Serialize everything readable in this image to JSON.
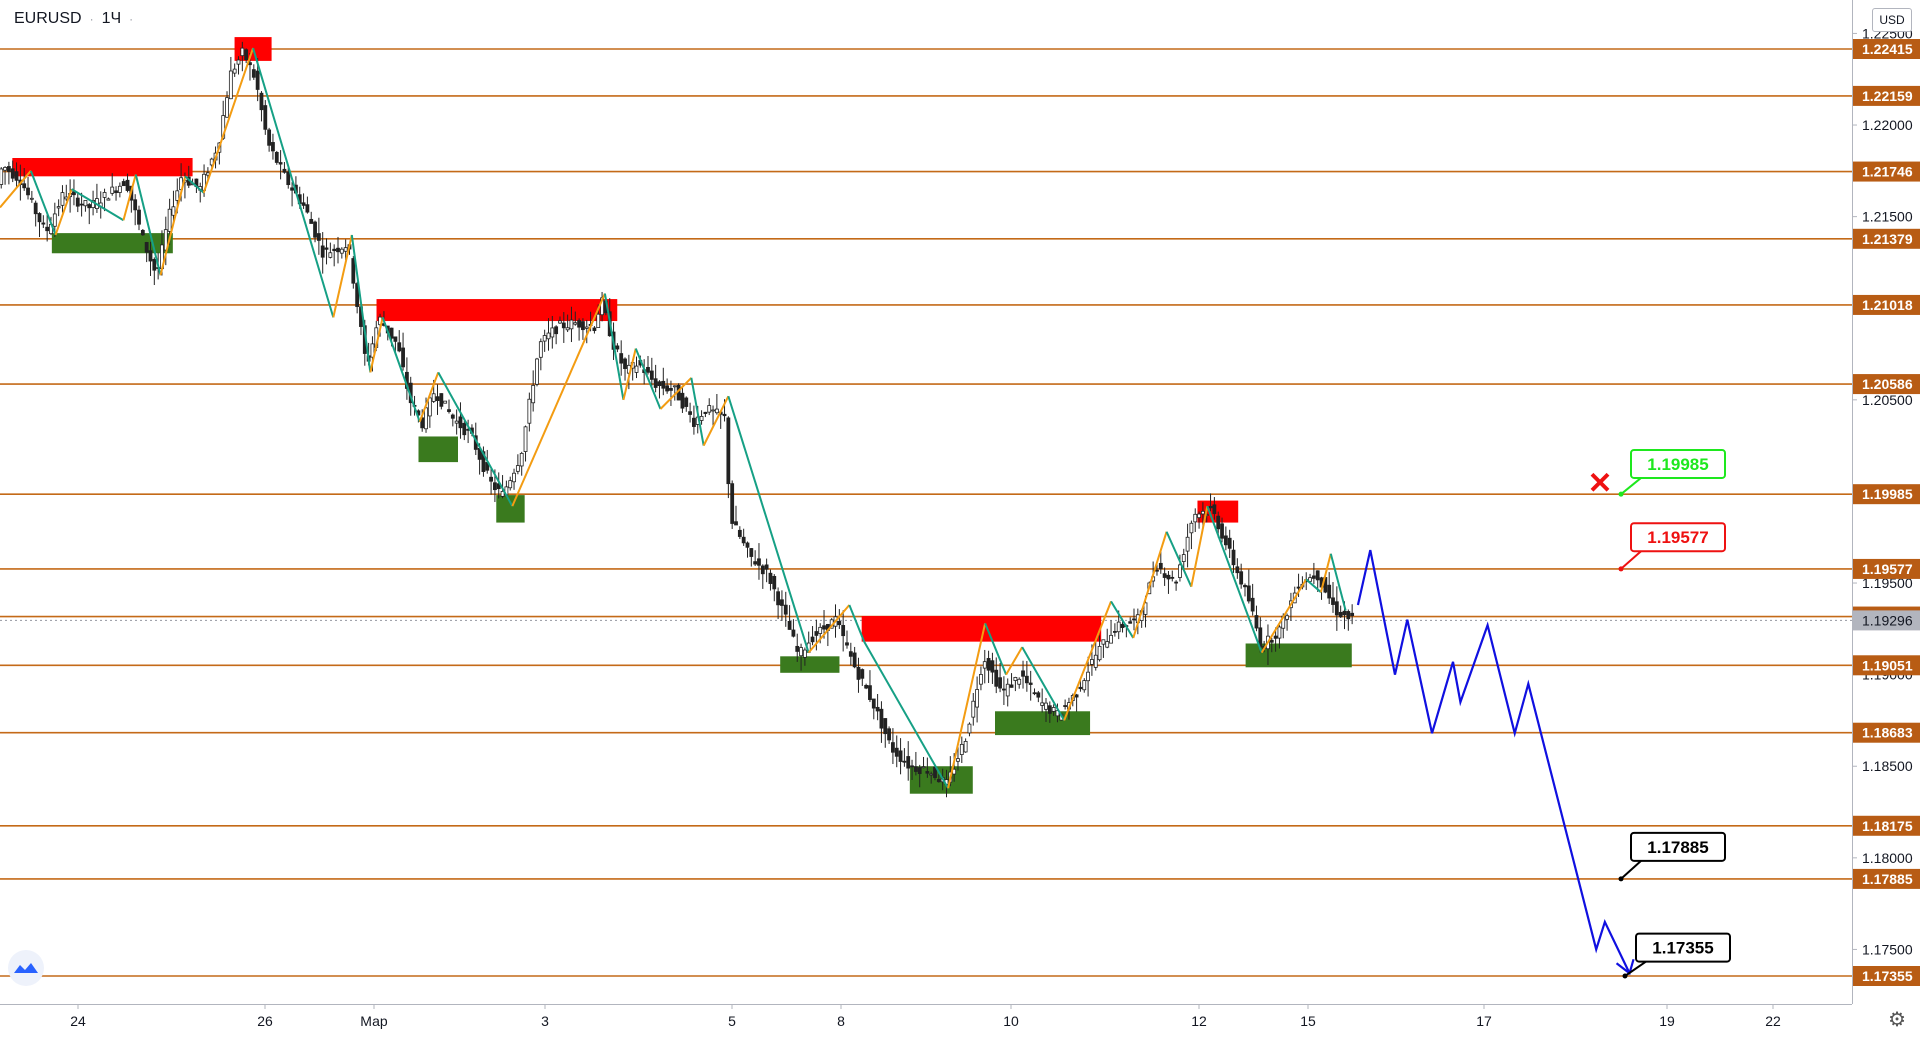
{
  "header": {
    "symbol": "EURUSD",
    "interval": "1Ч"
  },
  "currency": "USD",
  "colors": {
    "level": "#c46a18",
    "level_label_bg": "#b85c14",
    "resistance": "#ff0000",
    "support": "#3a7a1e",
    "forecast": "#1010e0",
    "zigzag_up": "#f39c12",
    "zigzag_down": "#16a085",
    "target_green": "#1ee81e",
    "target_red": "#ee1111",
    "target_black": "#000000",
    "cancel_mark": "#ee1111"
  },
  "chart_data": {
    "type": "candlestick",
    "title": "",
    "xlabel": "",
    "ylabel": "",
    "ylim": [
      1.1712,
      1.2272
    ],
    "y_ticks": [
      "1.22500",
      "1.22000",
      "1.21500",
      "1.20500",
      "1.19500",
      "1.19000",
      "1.18500",
      "1.18000",
      "1.17500"
    ],
    "x_ticks": [
      "24",
      "26",
      "Мар",
      "3",
      "5",
      "8",
      "10",
      "12",
      "15",
      "17",
      "19",
      "22"
    ],
    "current_price": "1.19296",
    "horizontal_levels": [
      "1.22415",
      "1.22159",
      "1.21746",
      "1.21379",
      "1.21018",
      "1.20586",
      "1.19985",
      "1.19577",
      "1.19317",
      "1.19051",
      "1.18683",
      "1.18175",
      "1.17885",
      "1.17355"
    ],
    "price_path": [
      [
        0,
        1.2165
      ],
      [
        5,
        1.2178
      ],
      [
        20,
        1.217
      ],
      [
        40,
        1.2141
      ],
      [
        55,
        1.2163
      ],
      [
        75,
        1.2155
      ],
      [
        90,
        1.2162
      ],
      [
        105,
        1.217
      ],
      [
        120,
        1.2135
      ],
      [
        130,
        1.2118
      ],
      [
        140,
        1.215
      ],
      [
        150,
        1.2172
      ],
      [
        165,
        1.2165
      ],
      [
        180,
        1.219
      ],
      [
        190,
        1.2228
      ],
      [
        200,
        1.224
      ],
      [
        210,
        1.2225
      ],
      [
        220,
        1.219
      ],
      [
        235,
        1.217
      ],
      [
        250,
        1.2155
      ],
      [
        265,
        1.213
      ],
      [
        285,
        1.2135
      ],
      [
        300,
        1.2068
      ],
      [
        310,
        1.2095
      ],
      [
        325,
        1.208
      ],
      [
        335,
        1.205
      ],
      [
        345,
        1.2037
      ],
      [
        355,
        1.2055
      ],
      [
        370,
        1.204
      ],
      [
        385,
        1.203
      ],
      [
        400,
        1.2005
      ],
      [
        410,
        1.1998
      ],
      [
        425,
        1.202
      ],
      [
        440,
        1.208
      ],
      [
        455,
        1.209
      ],
      [
        470,
        1.2092
      ],
      [
        485,
        1.209
      ],
      [
        490,
        1.2105
      ],
      [
        500,
        1.208
      ],
      [
        510,
        1.2065
      ],
      [
        520,
        1.207
      ],
      [
        535,
        1.2058
      ],
      [
        550,
        1.2055
      ],
      [
        565,
        1.2038
      ],
      [
        575,
        1.2045
      ],
      [
        590,
        1.204
      ],
      [
        595,
        1.1985
      ],
      [
        610,
        1.1965
      ],
      [
        625,
        1.1955
      ],
      [
        640,
        1.193
      ],
      [
        650,
        1.191
      ],
      [
        660,
        1.192
      ],
      [
        680,
        1.193
      ],
      [
        695,
        1.1905
      ],
      [
        710,
        1.1885
      ],
      [
        725,
        1.186
      ],
      [
        740,
        1.185
      ],
      [
        755,
        1.1848
      ],
      [
        770,
        1.184
      ],
      [
        785,
        1.1865
      ],
      [
        800,
        1.191
      ],
      [
        815,
        1.189
      ],
      [
        830,
        1.19
      ],
      [
        845,
        1.1885
      ],
      [
        860,
        1.1878
      ],
      [
        875,
        1.189
      ],
      [
        890,
        1.191
      ],
      [
        905,
        1.1925
      ],
      [
        925,
        1.193
      ],
      [
        940,
        1.196
      ],
      [
        955,
        1.195
      ],
      [
        970,
        1.1988
      ],
      [
        985,
        1.199
      ],
      [
        1000,
        1.1965
      ],
      [
        1015,
        1.194
      ],
      [
        1025,
        1.1915
      ],
      [
        1040,
        1.1925
      ],
      [
        1055,
        1.195
      ],
      [
        1070,
        1.1955
      ],
      [
        1085,
        1.1935
      ],
      [
        1098,
        1.193
      ]
    ],
    "zigzag_points": [
      [
        0,
        1.2155
      ],
      [
        25,
        1.2175
      ],
      [
        45,
        1.214
      ],
      [
        58,
        1.2165
      ],
      [
        100,
        1.2148
      ],
      [
        110,
        1.2173
      ],
      [
        130,
        1.2118
      ],
      [
        150,
        1.2172
      ],
      [
        165,
        1.2163
      ],
      [
        205,
        1.2242
      ],
      [
        270,
        1.2095
      ],
      [
        285,
        1.214
      ],
      [
        300,
        1.2065
      ],
      [
        310,
        1.2095
      ],
      [
        340,
        1.2038
      ],
      [
        355,
        1.2065
      ],
      [
        415,
        1.1992
      ],
      [
        490,
        1.2108
      ],
      [
        505,
        1.205
      ],
      [
        515,
        1.2078
      ],
      [
        535,
        1.2045
      ],
      [
        560,
        1.2062
      ],
      [
        570,
        1.2025
      ],
      [
        590,
        1.2052
      ],
      [
        655,
        1.1912
      ],
      [
        688,
        1.1938
      ],
      [
        700,
        1.1918
      ],
      [
        768,
        1.1838
      ],
      [
        798,
        1.1928
      ],
      [
        815,
        1.19
      ],
      [
        828,
        1.1915
      ],
      [
        862,
        1.1875
      ],
      [
        900,
        1.194
      ],
      [
        918,
        1.192
      ],
      [
        945,
        1.1978
      ],
      [
        965,
        1.1948
      ],
      [
        978,
        1.1992
      ],
      [
        1022,
        1.1912
      ],
      [
        1058,
        1.1952
      ],
      [
        1070,
        1.1945
      ],
      [
        1078,
        1.1966
      ],
      [
        1090,
        1.1935
      ]
    ],
    "resistance_zones": [
      {
        "x0": 10,
        "x1": 156,
        "y_top": 1.2182,
        "y_bot": 1.2172
      },
      {
        "x0": 190,
        "x1": 220,
        "y_top": 1.2248,
        "y_bot": 1.2235
      },
      {
        "x0": 305,
        "x1": 500,
        "y_top": 1.2105,
        "y_bot": 1.2093
      },
      {
        "x0": 698,
        "x1": 892,
        "y_top": 1.1932,
        "y_bot": 1.1918
      },
      {
        "x0": 970,
        "x1": 1003,
        "y_top": 1.1995,
        "y_bot": 1.1983
      }
    ],
    "support_zones": [
      {
        "x0": 42,
        "x1": 140,
        "y_top": 1.2141,
        "y_bot": 1.213
      },
      {
        "x0": 339,
        "x1": 371,
        "y_top": 1.203,
        "y_bot": 1.2016
      },
      {
        "x0": 402,
        "x1": 425,
        "y_top": 1.1998,
        "y_bot": 1.1983
      },
      {
        "x0": 632,
        "x1": 680,
        "y_top": 1.191,
        "y_bot": 1.1901
      },
      {
        "x0": 737,
        "x1": 788,
        "y_top": 1.185,
        "y_bot": 1.1835
      },
      {
        "x0": 806,
        "x1": 883,
        "y_top": 1.188,
        "y_bot": 1.1867
      },
      {
        "x0": 1009,
        "x1": 1095,
        "y_top": 1.1917,
        "y_bot": 1.1904
      }
    ],
    "forecast_path": [
      [
        1100,
        1.1938
      ],
      [
        1110,
        1.1968
      ],
      [
        1130,
        1.19
      ],
      [
        1140,
        1.193
      ],
      [
        1160,
        1.1868
      ],
      [
        1177,
        1.1907
      ],
      [
        1183,
        1.1885
      ],
      [
        1205,
        1.1927
      ],
      [
        1227,
        1.1868
      ],
      [
        1238,
        1.1895
      ],
      [
        1293,
        1.175
      ],
      [
        1300,
        1.1765
      ],
      [
        1320,
        1.1737
      ]
    ],
    "targets": [
      {
        "label": "1.19985",
        "color": "green",
        "value": 1.19985,
        "box_y": 1.2015
      },
      {
        "label": "1.19577",
        "color": "red",
        "value": 1.19577,
        "box_y": 1.1975
      },
      {
        "label": "1.17885",
        "color": "black",
        "value": 1.17885,
        "box_y": 1.1806
      },
      {
        "label": "1.17355",
        "color": "black",
        "value": 1.17355,
        "box_y": 1.1751
      }
    ],
    "cancel_mark_value": 1.2005
  }
}
